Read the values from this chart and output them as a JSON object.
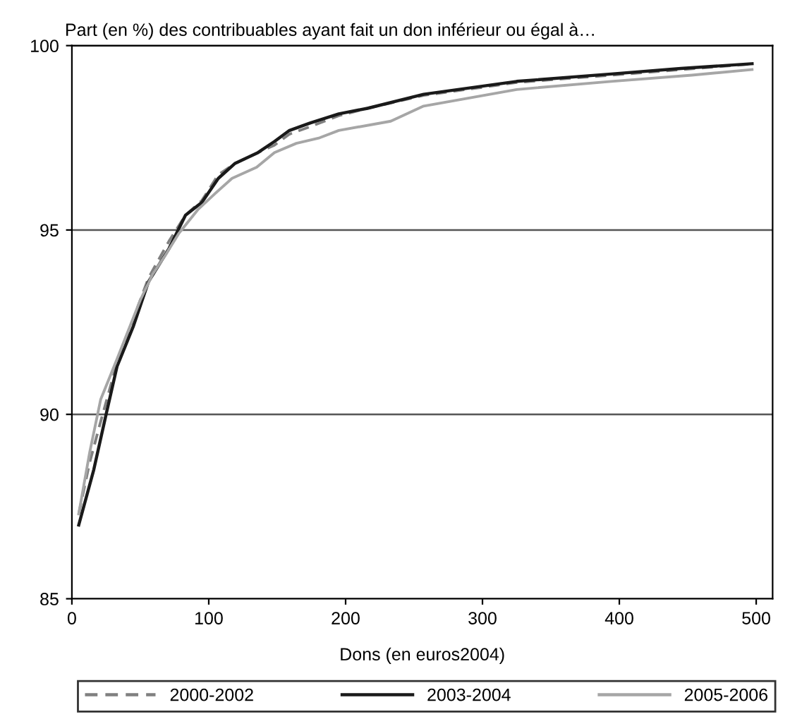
{
  "chart_data": {
    "type": "line",
    "title": "Part (en %) des contribuables ayant fait un don inférieur ou égal à…",
    "xlabel": "Dons (en euros2004)",
    "xlim": [
      0,
      512
    ],
    "xticks": [
      0,
      100,
      200,
      300,
      400,
      500
    ],
    "ylim": [
      85,
      100
    ],
    "yticks": [
      85,
      90,
      95,
      100
    ],
    "grid": "y",
    "legend": "bottom",
    "marker": "none",
    "series": [
      {
        "name": "2000-2002",
        "color": "#808080",
        "line_style": "dashed",
        "x": [
          5,
          13,
          21,
          33,
          45,
          56,
          71,
          83,
          95,
          107,
          119,
          136,
          148,
          159,
          174,
          195,
          216,
          257,
          325,
          394,
          445,
          497
        ],
        "values": [
          87.3,
          88.7,
          89.8,
          91.4,
          92.6,
          93.7,
          94.7,
          95.4,
          95.8,
          96.5,
          96.8,
          97.1,
          97.3,
          97.6,
          97.8,
          98.1,
          98.3,
          98.65,
          99.0,
          99.2,
          99.35,
          99.5
        ]
      },
      {
        "name": "2003-2004",
        "color": "#1a1a1a",
        "line_style": "solid",
        "x": [
          5,
          16,
          25,
          33,
          45,
          56,
          71,
          83,
          95,
          107,
          119,
          136,
          148,
          159,
          174,
          195,
          216,
          257,
          325,
          394,
          445,
          497
        ],
        "values": [
          87.0,
          88.5,
          90.0,
          91.3,
          92.4,
          93.6,
          94.5,
          95.4,
          95.75,
          96.4,
          96.8,
          97.1,
          97.4,
          97.7,
          97.9,
          98.15,
          98.3,
          98.68,
          99.03,
          99.23,
          99.38,
          99.51
        ]
      },
      {
        "name": "2005-2006",
        "color": "#a6a6a6",
        "line_style": "solid",
        "x": [
          5,
          13,
          21,
          33,
          50,
          59,
          68,
          78,
          92,
          105,
          117,
          135,
          148,
          164,
          181,
          195,
          233,
          257,
          325,
          394,
          453,
          497
        ],
        "values": [
          87.3,
          88.97,
          90.4,
          91.5,
          93.1,
          93.8,
          94.3,
          94.9,
          95.55,
          96.0,
          96.4,
          96.7,
          97.1,
          97.35,
          97.5,
          97.7,
          97.95,
          98.36,
          98.81,
          99.03,
          99.2,
          99.35
        ]
      }
    ]
  }
}
